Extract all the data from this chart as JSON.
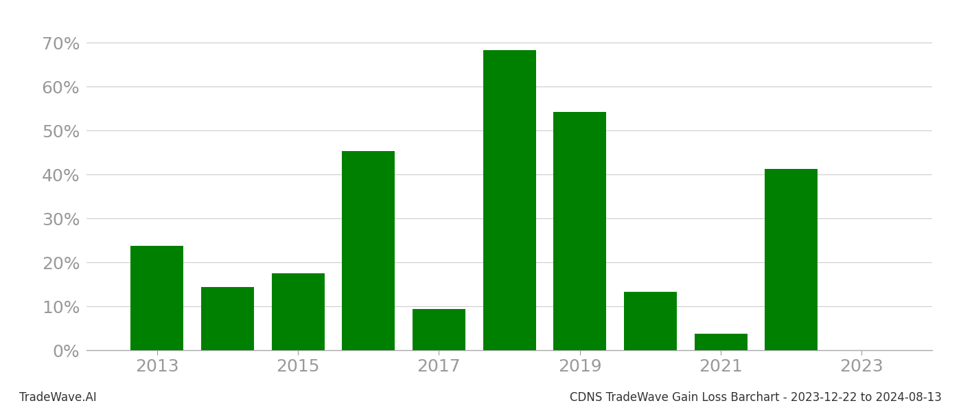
{
  "years": [
    2013,
    2014,
    2015,
    2016,
    2017,
    2018,
    2019,
    2020,
    2021,
    2022,
    2023
  ],
  "values": [
    0.237,
    0.143,
    0.175,
    0.453,
    0.094,
    0.683,
    0.542,
    0.133,
    0.038,
    0.413,
    0.0
  ],
  "bar_color": "#008000",
  "ylim": [
    0,
    0.75
  ],
  "yticks": [
    0.0,
    0.1,
    0.2,
    0.3,
    0.4,
    0.5,
    0.6,
    0.7
  ],
  "xlabel": "",
  "ylabel": "",
  "title": "",
  "footer_left": "TradeWave.AI",
  "footer_right": "CDNS TradeWave Gain Loss Barchart - 2023-12-22 to 2024-08-13",
  "grid_color": "#cccccc",
  "tick_label_color": "#999999",
  "tick_label_fontsize": 18,
  "footer_fontsize": 12,
  "bar_width": 0.75
}
